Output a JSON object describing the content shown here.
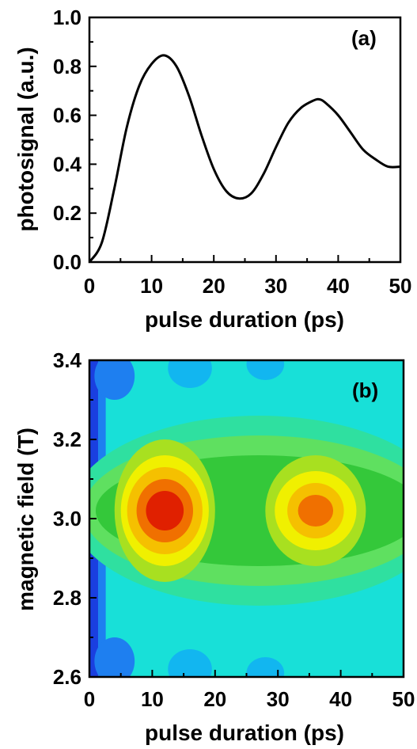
{
  "chart_data": [
    {
      "type": "line",
      "panel_label": "(a)",
      "xlabel": "pulse duration (ps)",
      "ylabel": "photosignal (a.u.)",
      "xlim": [
        0,
        50
      ],
      "ylim": [
        0,
        1.0
      ],
      "x_ticks": [
        "0",
        "10",
        "20",
        "30",
        "40",
        "50"
      ],
      "y_ticks": [
        "0.0",
        "0.2",
        "0.4",
        "0.6",
        "0.8",
        "1.0"
      ],
      "grid": false,
      "series": [
        {
          "color": "#000000",
          "points": [
            [
              0,
              0.0
            ],
            [
              2,
              0.08
            ],
            [
              4,
              0.3
            ],
            [
              6,
              0.55
            ],
            [
              8,
              0.72
            ],
            [
              10,
              0.81
            ],
            [
              12,
              0.845
            ],
            [
              14,
              0.8
            ],
            [
              16,
              0.68
            ],
            [
              18,
              0.52
            ],
            [
              20,
              0.38
            ],
            [
              22,
              0.29
            ],
            [
              24,
              0.26
            ],
            [
              26,
              0.28
            ],
            [
              28,
              0.36
            ],
            [
              30,
              0.47
            ],
            [
              32,
              0.57
            ],
            [
              34,
              0.63
            ],
            [
              36,
              0.66
            ],
            [
              37,
              0.665
            ],
            [
              38,
              0.65
            ],
            [
              40,
              0.6
            ],
            [
              42,
              0.53
            ],
            [
              44,
              0.46
            ],
            [
              46,
              0.42
            ],
            [
              48,
              0.39
            ],
            [
              50,
              0.39
            ]
          ]
        }
      ]
    },
    {
      "type": "heatmap",
      "panel_label": "(b)",
      "xlabel": "pulse duration (ps)",
      "ylabel": "magnetic field (T)",
      "xlim": [
        0,
        50
      ],
      "ylim": [
        2.6,
        3.4
      ],
      "x_ticks": [
        "0",
        "10",
        "20",
        "30",
        "40",
        "50"
      ],
      "y_ticks": [
        "2.6",
        "2.8",
        "3.0",
        "3.2",
        "3.4"
      ],
      "grid": false,
      "colormap": [
        "#1a3fe0",
        "#1e7ff0",
        "#12b6f0",
        "#18e0d8",
        "#2fe0a0",
        "#5fe060",
        "#34c83a",
        "#a8e020",
        "#f0f000",
        "#f5c000",
        "#f07000",
        "#e02000"
      ],
      "resonance_field": 3.02,
      "peaks": [
        {
          "x": 12,
          "y": 3.02,
          "level": "max"
        },
        {
          "x": 36,
          "y": 3.02,
          "level": "secondary"
        }
      ]
    }
  ]
}
